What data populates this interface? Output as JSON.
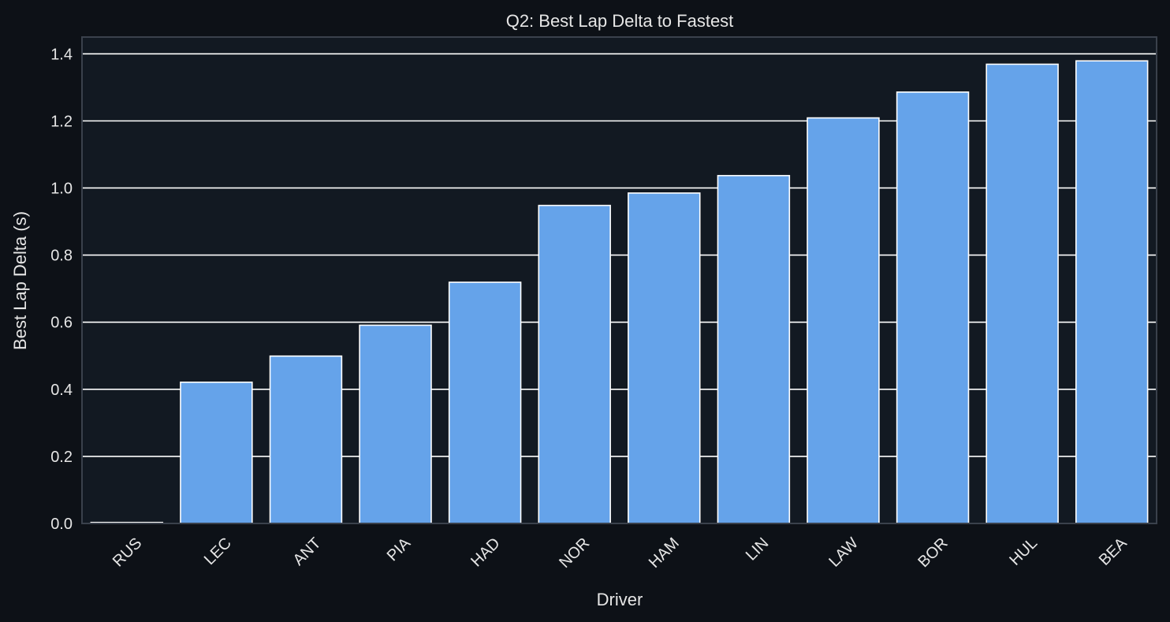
{
  "chart_data": {
    "type": "bar",
    "title": "Q2: Best Lap Delta to Fastest",
    "xlabel": "Driver",
    "ylabel": "Best Lap Delta (s)",
    "categories": [
      "RUS",
      "LEC",
      "ANT",
      "PIA",
      "HAD",
      "NOR",
      "HAM",
      "LIN",
      "LAW",
      "BOR",
      "HUL",
      "BEA"
    ],
    "values": [
      0.003,
      0.421,
      0.499,
      0.591,
      0.719,
      0.948,
      0.985,
      1.037,
      1.209,
      1.286,
      1.369,
      1.379
    ],
    "ylim": [
      0,
      1.45
    ],
    "yticks": [
      0.0,
      0.2,
      0.4,
      0.6,
      0.8,
      1.0,
      1.2,
      1.4
    ],
    "ytick_labels": [
      "0.0",
      "0.2",
      "0.4",
      "0.6",
      "0.8",
      "1.0",
      "1.2",
      "1.4"
    ],
    "grid": "horizontal",
    "bar_color": "#65a3ea",
    "bar_edge_color": "#ffffff",
    "plot_background": "#121922",
    "page_background": "#0d1117"
  }
}
